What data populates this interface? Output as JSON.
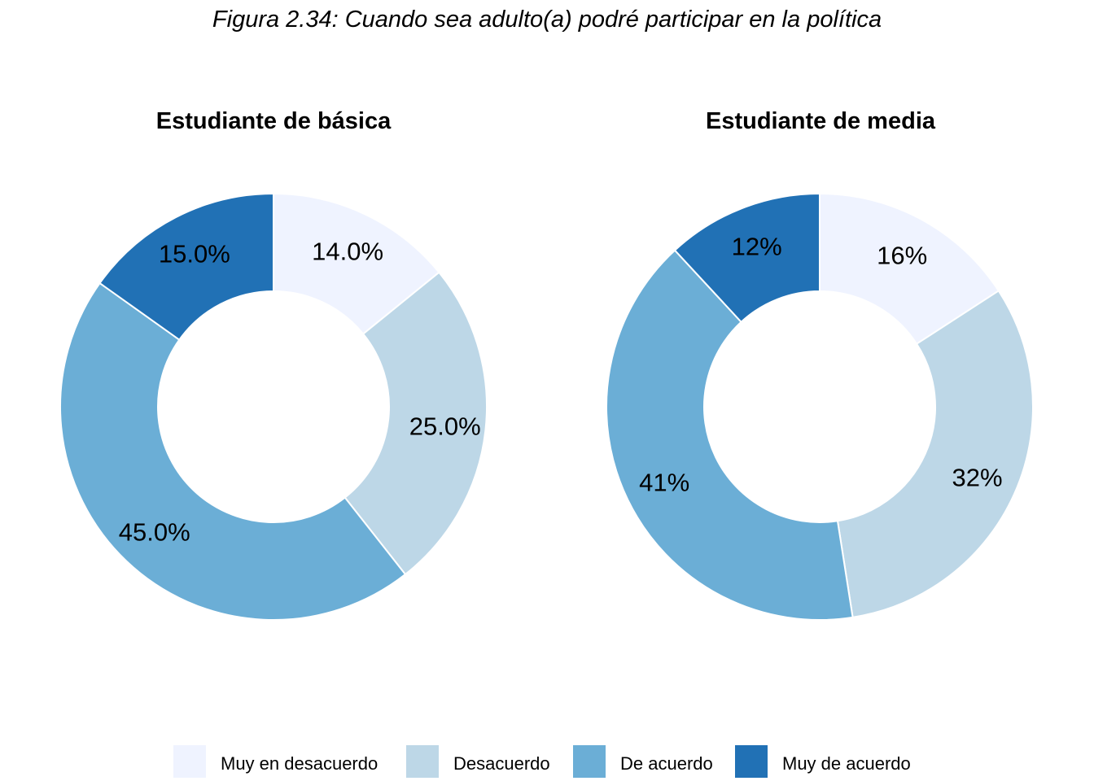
{
  "figure_title": "Figura 2.34: Cuando sea adulto(a) podré participar en la política",
  "chart_data": [
    {
      "type": "pie",
      "donut": true,
      "title": "Estudiante de básica",
      "categories": [
        "Muy en desacuerdo",
        "Desacuerdo",
        "De acuerdo",
        "Muy de acuerdo"
      ],
      "values": [
        14.0,
        25.0,
        45.0,
        15.0
      ],
      "labels": [
        "14.0%",
        "25.0%",
        "45.0%",
        "15.0%"
      ],
      "colors": [
        "#EFF3FF",
        "#BDD7E7",
        "#6BAED6",
        "#2171B5"
      ],
      "start": "12 o'clock",
      "direction": "clockwise"
    },
    {
      "type": "pie",
      "donut": true,
      "title": "Estudiante de media",
      "categories": [
        "Muy en desacuerdo",
        "Desacuerdo",
        "De acuerdo",
        "Muy de acuerdo"
      ],
      "values": [
        16,
        32,
        41,
        12
      ],
      "labels": [
        "16%",
        "32%",
        "41%",
        "12%"
      ],
      "colors": [
        "#EFF3FF",
        "#BDD7E7",
        "#6BAED6",
        "#2171B5"
      ],
      "start": "12 o'clock",
      "direction": "clockwise"
    }
  ],
  "legend": {
    "placement": "bottom",
    "items": [
      {
        "label": "Muy en desacuerdo",
        "color": "#EFF3FF"
      },
      {
        "label": "Desacuerdo",
        "color": "#BDD7E7"
      },
      {
        "label": "De acuerdo",
        "color": "#6BAED6"
      },
      {
        "label": "Muy de acuerdo",
        "color": "#2171B5"
      }
    ]
  }
}
